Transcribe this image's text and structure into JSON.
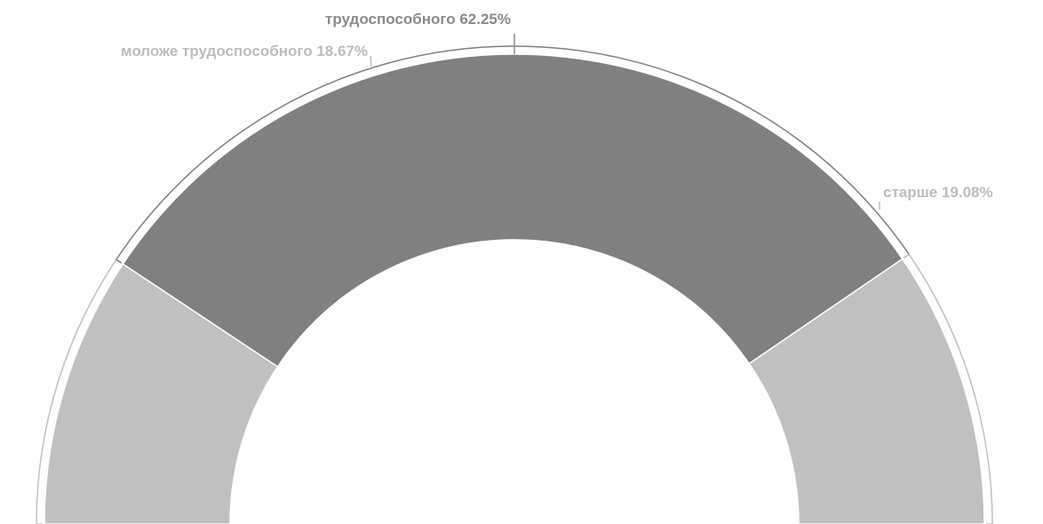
{
  "chart_data": {
    "type": "pie",
    "variant": "semi-donut",
    "slices": [
      {
        "label": "моложе трудоспособного 18.67%",
        "value": 18.67,
        "color": "#c0c0c0",
        "label_color": "#bdbdbd"
      },
      {
        "label": "трудоспособного 62.25%",
        "value": 62.25,
        "color": "#808080",
        "label_color": "#8a8a8a"
      },
      {
        "label": "старше 19.08%",
        "value": 19.08,
        "color": "#c0c0c0",
        "label_color": "#bdbdbd"
      }
    ]
  }
}
